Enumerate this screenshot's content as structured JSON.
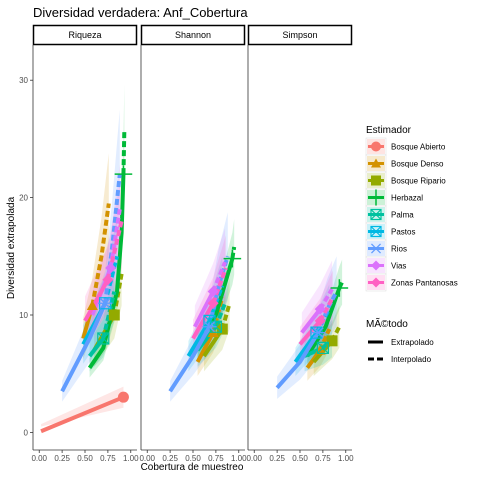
{
  "chart_data": {
    "type": "line",
    "title": "Diversidad verdadera: Anf_Cobertura",
    "xlabel": "Cobertura de muestreo",
    "ylabel": "Diversidad extrapolada",
    "facets": [
      "Riqueza",
      "Shannon",
      "Simpson"
    ],
    "xlim": [
      0,
      1
    ],
    "ylim": [
      -1.5,
      33
    ],
    "x_ticks": [
      "0.00",
      "0.25",
      "0.50",
      "0.75",
      "1.00"
    ],
    "y_ticks": [
      0,
      10,
      20,
      30
    ],
    "legend": {
      "estimador_title": "Estimador",
      "estimador": [
        "Bosque Abierto",
        "Bosque Denso",
        "Bosque Ripario",
        "Herbazal",
        "Palma",
        "Pastos",
        "Rios",
        "Vias",
        "Zonas Pantanosas"
      ],
      "metodo_title": "MÃ©todo",
      "metodo": [
        "Extrapolado",
        "Interpolado"
      ]
    },
    "series_colors": {
      "Bosque Abierto": "#F8766D",
      "Bosque Denso": "#D39200",
      "Bosque Ripario": "#93AA00",
      "Herbazal": "#00BA38",
      "Palma": "#00C19F",
      "Pastos": "#00B9E3",
      "Rios": "#619CFF",
      "Vias": "#DB72FB",
      "Zonas Pantanosas": "#FF61C3"
    },
    "series": [
      {
        "name": "Bosque Abierto",
        "facet": "Riqueza",
        "interp": [
          [
            0.02,
            0.1
          ],
          [
            0.92,
            3.0
          ]
        ],
        "extrap": [],
        "band": 0.3,
        "point": [
          0.92,
          3.0
        ],
        "shape": "circle"
      },
      {
        "name": "Bosque Denso",
        "facet": "Riqueza",
        "interp": [
          [
            0.48,
            8.0
          ],
          [
            0.58,
            10.8
          ]
        ],
        "extrap": [
          [
            0.58,
            10.8
          ],
          [
            0.68,
            15.0
          ],
          [
            0.76,
            19.5
          ]
        ],
        "band": 0.22,
        "point": [
          0.58,
          10.8
        ],
        "shape": "triangle"
      },
      {
        "name": "Bosque Ripario",
        "facet": "Riqueza",
        "interp": [
          [
            0.6,
            7.0
          ],
          [
            0.82,
            10.0
          ]
        ],
        "extrap": [
          [
            0.82,
            10.0
          ],
          [
            0.9,
            13.5
          ]
        ],
        "band": 0.2,
        "point": [
          0.82,
          10.0
        ],
        "shape": "square"
      },
      {
        "name": "Herbazal",
        "facet": "Riqueza",
        "interp": [
          [
            0.55,
            5.5
          ],
          [
            0.7,
            7.2
          ],
          [
            0.85,
            12.0
          ],
          [
            0.9,
            17.0
          ],
          [
            0.92,
            22.0
          ]
        ],
        "extrap": [
          [
            0.92,
            22.0
          ],
          [
            0.93,
            25.8
          ]
        ],
        "band": 0.15,
        "point": [
          0.92,
          22.0
        ],
        "shape": "plus"
      },
      {
        "name": "Palma",
        "facet": "Riqueza",
        "interp": [
          [
            0.55,
            6.5
          ],
          [
            0.7,
            8.0
          ]
        ],
        "extrap": [
          [
            0.7,
            8.0
          ],
          [
            0.82,
            12.0
          ]
        ],
        "band": 0.2,
        "point": [
          0.7,
          8.0
        ],
        "shape": "boxx"
      },
      {
        "name": "Pastos",
        "facet": "Riqueza",
        "interp": [
          [
            0.48,
            7.5
          ],
          [
            0.72,
            11.0
          ]
        ],
        "extrap": [
          [
            0.72,
            11.0
          ],
          [
            0.85,
            15.0
          ]
        ],
        "band": 0.22,
        "point": [
          0.72,
          11.0
        ],
        "shape": "boxx"
      },
      {
        "name": "Rios",
        "facet": "Riqueza",
        "interp": [
          [
            0.25,
            3.5
          ],
          [
            0.55,
            8.0
          ],
          [
            0.72,
            11.0
          ]
        ],
        "extrap": [
          [
            0.72,
            11.0
          ],
          [
            0.8,
            16.0
          ],
          [
            0.88,
            22.0
          ]
        ],
        "band": 0.25,
        "point": [
          0.72,
          11.0
        ],
        "shape": "star"
      },
      {
        "name": "Vias",
        "facet": "Riqueza",
        "interp": [
          [
            0.58,
            10.0
          ],
          [
            0.78,
            14.0
          ]
        ],
        "extrap": [
          [
            0.78,
            14.0
          ],
          [
            0.88,
            19.0
          ]
        ],
        "band": 0.2,
        "point": [
          0.78,
          14.0
        ],
        "shape": "diamond"
      },
      {
        "name": "Zonas Pantanosas",
        "facet": "Riqueza",
        "interp": [
          [
            0.5,
            9.5
          ],
          [
            0.75,
            13.0
          ]
        ],
        "extrap": [
          [
            0.75,
            13.0
          ],
          [
            0.9,
            18.0
          ]
        ],
        "band": 0.22,
        "point": [
          0.75,
          13.0
        ],
        "shape": "diamond"
      },
      {
        "name": "Bosque Denso",
        "facet": "Shannon",
        "interp": [
          [
            0.55,
            6.0
          ],
          [
            0.72,
            8.5
          ]
        ],
        "extrap": [
          [
            0.72,
            8.5
          ],
          [
            0.82,
            11.5
          ]
        ],
        "band": 0.2,
        "point": [
          0.72,
          8.5
        ],
        "shape": "triangle"
      },
      {
        "name": "Bosque Ripario",
        "facet": "Shannon",
        "interp": [
          [
            0.62,
            6.5
          ],
          [
            0.82,
            8.8
          ]
        ],
        "extrap": [
          [
            0.82,
            8.8
          ],
          [
            0.9,
            11.0
          ]
        ],
        "band": 0.2,
        "point": [
          0.82,
          8.8
        ],
        "shape": "square"
      },
      {
        "name": "Herbazal",
        "facet": "Shannon",
        "interp": [
          [
            0.55,
            7.5
          ],
          [
            0.75,
            10.0
          ],
          [
            0.93,
            14.8
          ]
        ],
        "extrap": [
          [
            0.93,
            14.8
          ],
          [
            0.95,
            15.8
          ]
        ],
        "band": 0.15,
        "point": [
          0.93,
          14.8
        ],
        "shape": "plus"
      },
      {
        "name": "Palma",
        "facet": "Shannon",
        "interp": [
          [
            0.55,
            7.0
          ],
          [
            0.75,
            9.0
          ]
        ],
        "extrap": [
          [
            0.75,
            9.0
          ],
          [
            0.85,
            11.0
          ]
        ],
        "band": 0.2,
        "point": [
          0.75,
          9.0
        ],
        "shape": "boxx"
      },
      {
        "name": "Pastos",
        "facet": "Shannon",
        "interp": [
          [
            0.45,
            6.5
          ],
          [
            0.68,
            9.5
          ]
        ],
        "extrap": [
          [
            0.68,
            9.5
          ],
          [
            0.82,
            12.5
          ]
        ],
        "band": 0.2,
        "point": [
          0.68,
          9.5
        ],
        "shape": "boxx"
      },
      {
        "name": "Rios",
        "facet": "Shannon",
        "interp": [
          [
            0.25,
            3.5
          ],
          [
            0.5,
            6.5
          ],
          [
            0.68,
            9.0
          ]
        ],
        "extrap": [
          [
            0.68,
            9.0
          ],
          [
            0.78,
            12.5
          ],
          [
            0.88,
            15.0
          ]
        ],
        "band": 0.25,
        "point": [
          0.68,
          9.0
        ],
        "shape": "star"
      },
      {
        "name": "Vias",
        "facet": "Shannon",
        "interp": [
          [
            0.52,
            9.0
          ],
          [
            0.72,
            12.0
          ]
        ],
        "extrap": [
          [
            0.72,
            12.0
          ],
          [
            0.85,
            14.5
          ]
        ],
        "band": 0.2,
        "point": [
          0.72,
          12.0
        ],
        "shape": "diamond"
      },
      {
        "name": "Zonas Pantanosas",
        "facet": "Shannon",
        "interp": [
          [
            0.5,
            8.0
          ],
          [
            0.72,
            11.0
          ]
        ],
        "extrap": [
          [
            0.72,
            11.0
          ],
          [
            0.86,
            14.0
          ]
        ],
        "band": 0.2,
        "point": [
          0.72,
          11.0
        ],
        "shape": "diamond"
      },
      {
        "name": "Bosque Denso",
        "facet": "Simpson",
        "interp": [
          [
            0.58,
            5.5
          ],
          [
            0.72,
            7.0
          ]
        ],
        "extrap": [
          [
            0.72,
            7.0
          ],
          [
            0.82,
            8.8
          ]
        ],
        "band": 0.2,
        "point": [
          0.72,
          7.0
        ],
        "shape": "triangle"
      },
      {
        "name": "Bosque Ripario",
        "facet": "Simpson",
        "interp": [
          [
            0.65,
            6.0
          ],
          [
            0.85,
            7.8
          ]
        ],
        "extrap": [
          [
            0.85,
            7.8
          ],
          [
            0.93,
            9.0
          ]
        ],
        "band": 0.2,
        "point": [
          0.85,
          7.8
        ],
        "shape": "square"
      },
      {
        "name": "Herbazal",
        "facet": "Simpson",
        "interp": [
          [
            0.58,
            6.5
          ],
          [
            0.78,
            9.0
          ],
          [
            0.93,
            12.3
          ]
        ],
        "extrap": [
          [
            0.93,
            12.3
          ],
          [
            0.96,
            12.8
          ]
        ],
        "band": 0.15,
        "point": [
          0.93,
          12.3
        ],
        "shape": "plus"
      },
      {
        "name": "Palma",
        "facet": "Simpson",
        "interp": [
          [
            0.55,
            6.5
          ],
          [
            0.75,
            7.2
          ]
        ],
        "extrap": [
          [
            0.75,
            7.2
          ],
          [
            0.85,
            8.0
          ]
        ],
        "band": 0.2,
        "point": [
          0.75,
          7.2
        ],
        "shape": "boxx"
      },
      {
        "name": "Pastos",
        "facet": "Simpson",
        "interp": [
          [
            0.45,
            6.0
          ],
          [
            0.68,
            8.5
          ]
        ],
        "extrap": [
          [
            0.68,
            8.5
          ],
          [
            0.82,
            10.5
          ]
        ],
        "band": 0.2,
        "point": [
          0.68,
          8.5
        ],
        "shape": "boxx"
      },
      {
        "name": "Rios",
        "facet": "Simpson",
        "interp": [
          [
            0.25,
            3.8
          ],
          [
            0.5,
            6.0
          ],
          [
            0.7,
            8.5
          ]
        ],
        "extrap": [
          [
            0.7,
            8.5
          ],
          [
            0.8,
            10.5
          ],
          [
            0.9,
            12.0
          ]
        ],
        "band": 0.25,
        "point": [
          0.7,
          8.5
        ],
        "shape": "star"
      },
      {
        "name": "Vias",
        "facet": "Simpson",
        "interp": [
          [
            0.52,
            8.5
          ],
          [
            0.72,
            10.5
          ]
        ],
        "extrap": [
          [
            0.72,
            10.5
          ],
          [
            0.85,
            12.2
          ]
        ],
        "band": 0.2,
        "point": [
          0.72,
          10.5
        ],
        "shape": "diamond"
      },
      {
        "name": "Zonas Pantanosas",
        "facet": "Simpson",
        "interp": [
          [
            0.5,
            7.5
          ],
          [
            0.72,
            9.5
          ]
        ],
        "extrap": [
          [
            0.72,
            9.5
          ],
          [
            0.86,
            11.5
          ]
        ],
        "band": 0.2,
        "point": [
          0.72,
          9.5
        ],
        "shape": "diamond"
      }
    ]
  }
}
